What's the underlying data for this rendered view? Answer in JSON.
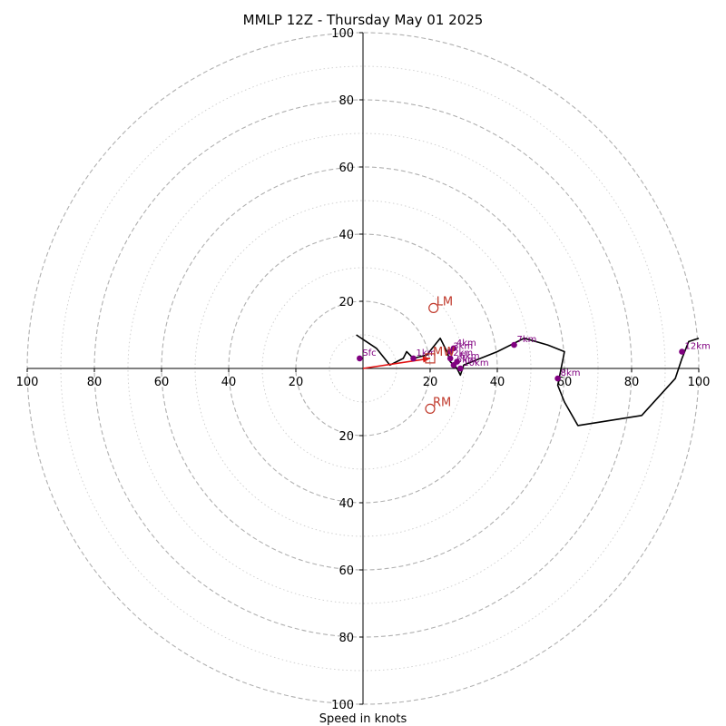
{
  "chart_data": {
    "type": "hodograph",
    "title": "MMLP 12Z - Thursday May 01 2025",
    "xlabel": "Speed in knots",
    "max_speed": 100,
    "ring_step": 20,
    "minor_ring_step": 10,
    "axis_tick_labels": {
      "left": [
        "100",
        "80",
        "60",
        "40",
        "20"
      ],
      "right": [
        "20",
        "40",
        "60",
        "80",
        "100"
      ],
      "top": [
        "100",
        "80",
        "60",
        "40",
        "20"
      ],
      "bottom": [
        "20",
        "40",
        "60",
        "80",
        "100"
      ]
    },
    "axis_tick_values": [
      20,
      40,
      60,
      80,
      100
    ],
    "hodograph_trace": [
      [
        -2,
        10
      ],
      [
        1,
        8
      ],
      [
        4,
        6
      ],
      [
        8,
        1
      ],
      [
        12,
        3
      ],
      [
        13,
        5
      ],
      [
        15,
        3
      ],
      [
        19,
        4
      ],
      [
        23,
        9
      ],
      [
        25,
        5
      ],
      [
        26,
        2
      ],
      [
        28,
        0
      ],
      [
        29,
        -2
      ],
      [
        30,
        1
      ],
      [
        35,
        3
      ],
      [
        40,
        5
      ],
      [
        44,
        7
      ],
      [
        48,
        9
      ],
      [
        55,
        7
      ],
      [
        60,
        5
      ],
      [
        59,
        0
      ],
      [
        58,
        -5
      ],
      [
        60,
        -10
      ],
      [
        64,
        -17
      ],
      [
        83,
        -14
      ],
      [
        93,
        -3
      ],
      [
        95,
        3
      ],
      [
        97,
        8
      ],
      [
        100,
        9
      ]
    ],
    "height_labels": [
      {
        "label": "Sfc",
        "u": -1,
        "v": 3
      },
      {
        "label": "1km",
        "u": 15,
        "v": 3
      },
      {
        "label": "4km",
        "u": 27,
        "v": 6
      },
      {
        "label": "3km",
        "u": 26,
        "v": 5
      },
      {
        "label": "2km",
        "u": 26,
        "v": 3
      },
      {
        "label": "6km",
        "u": 28,
        "v": 2
      },
      {
        "label": "5km",
        "u": 27,
        "v": 1
      },
      {
        "label": "10km",
        "u": 29,
        "v": 0
      },
      {
        "label": "7km",
        "u": 45,
        "v": 7
      },
      {
        "label": "8km",
        "u": 58,
        "v": -3
      },
      {
        "label": "12km",
        "u": 95,
        "v": 5
      }
    ],
    "storm_motions": [
      {
        "label": "LM",
        "u": 21,
        "v": 18,
        "marker": "circle"
      },
      {
        "label": "RM",
        "u": 20,
        "v": -12,
        "marker": "circle"
      },
      {
        "label": "MW",
        "u": 20,
        "v": 3,
        "marker": "square"
      }
    ],
    "shear_vector": {
      "from": [
        0,
        0
      ],
      "to": [
        20,
        3
      ]
    },
    "colors": {
      "trace": "#000000",
      "height_points": "#800080",
      "storm_motion": "#c0392b",
      "shear_vector": "#e01010",
      "rings": "#b0b0b0"
    }
  }
}
